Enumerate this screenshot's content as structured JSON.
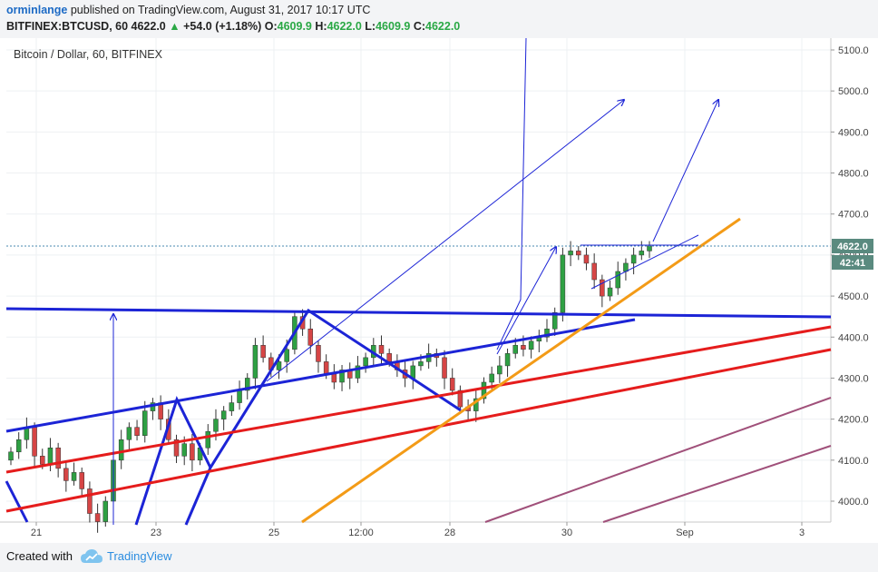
{
  "header": {
    "author": "orminlange",
    "published": "published on TradingView.com, August 31, 2017 10:17 UTC",
    "symbol": "BITFINEX:BTCUSD, 60",
    "last": "4622.0",
    "change": "+54.0 (+1.18%)",
    "o_label": "O:",
    "o_value": "4609.9",
    "h_label": "H:",
    "h_value": "4622.0",
    "l_label": "L:",
    "l_value": "4609.9",
    "c_label": "C:",
    "c_value": "4622.0"
  },
  "footer": {
    "created_with": "Created with",
    "brand": "TradingView"
  },
  "chart_data": {
    "type": "candlestick",
    "title": "Bitcoin / Dollar, 60, BITFINEX",
    "y_ticks": [
      "5100.0",
      "5000.0",
      "4900.0",
      "4800.0",
      "4700.0",
      "4600.0",
      "4500.0",
      "4400.0",
      "4300.0",
      "4200.0",
      "4100.0",
      "4000.0"
    ],
    "x_ticks": [
      "21",
      "23",
      "25",
      "12:00",
      "28",
      "30",
      "Sep",
      "3"
    ],
    "ylim": [
      3960,
      5140
    ],
    "price_label": "4622.0",
    "countdown_label": "42:41",
    "colors": {
      "blue": "#1c24d6",
      "red": "#e51c1c",
      "orange": "#f39b17",
      "purple": "#a0507a",
      "up": "#2ea043",
      "down": "#d64545"
    },
    "candle_closes": [
      4120,
      4150,
      4180,
      4110,
      4090,
      4130,
      4080,
      4050,
      4070,
      4030,
      3970,
      3950,
      4000,
      4100,
      4150,
      4180,
      4160,
      4220,
      4240,
      4200,
      4150,
      4110,
      4140,
      4100,
      4130,
      4170,
      4200,
      4220,
      4240,
      4270,
      4300,
      4380,
      4350,
      4320,
      4340,
      4370,
      4450,
      4420,
      4380,
      4340,
      4310,
      4290,
      4320,
      4300,
      4330,
      4350,
      4380,
      4360,
      4340,
      4320,
      4300,
      4330,
      4340,
      4360,
      4350,
      4300,
      4270,
      4230,
      4220,
      4250,
      4290,
      4310,
      4330,
      4360,
      4380,
      4370,
      4390,
      4400,
      4420,
      4460,
      4600,
      4610,
      4600,
      4580,
      4540,
      4500,
      4520,
      4560,
      4580,
      4600,
      4610,
      4622
    ]
  }
}
